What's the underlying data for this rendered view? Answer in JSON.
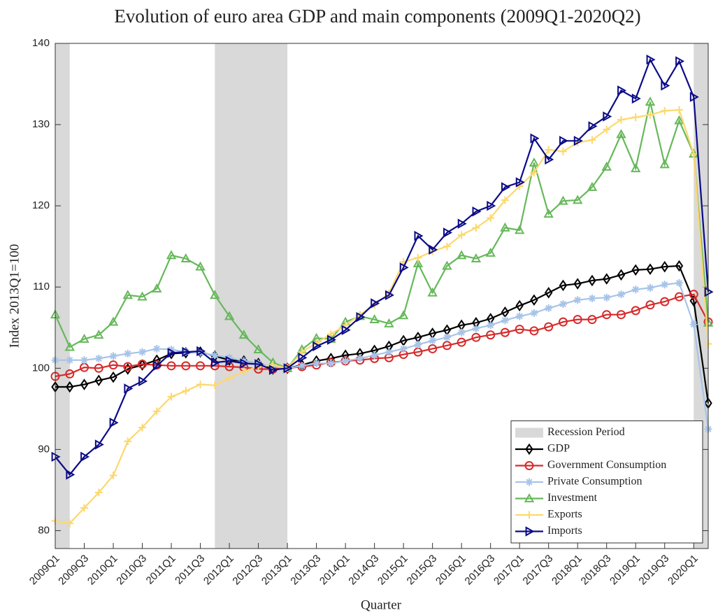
{
  "chart_data": {
    "type": "line",
    "title": "Evolution of euro area GDP and main components (2009Q1-2020Q2)",
    "x_label": "Quarter",
    "y_label": "Index 2013Q1=100",
    "categories": [
      "2009Q1",
      null,
      "2009Q3",
      null,
      "2010Q1",
      null,
      "2010Q3",
      null,
      "2011Q1",
      null,
      "2011Q3",
      null,
      "2012Q1",
      null,
      "2012Q3",
      null,
      "2013Q1",
      null,
      "2013Q3",
      null,
      "2014Q1",
      null,
      "2014Q3",
      null,
      "2015Q1",
      null,
      "2015Q3",
      null,
      "2016Q1",
      null,
      "2016Q3",
      null,
      "2017Q1",
      null,
      "2017Q3",
      null,
      "2018Q1",
      null,
      "2018Q3",
      null,
      "2019Q1",
      null,
      "2019Q3",
      null,
      "2020Q1",
      null
    ],
    "ylim": [
      77.8,
      140
    ],
    "yticks": [
      80,
      90,
      100,
      110,
      120,
      130,
      140
    ],
    "recession_label": "Recession Period",
    "recession_color": "#d9d9d9",
    "recession_spans": [
      [
        0,
        1
      ],
      [
        11,
        16
      ],
      [
        44,
        45
      ]
    ],
    "legend": "lower right",
    "series": [
      {
        "name": "GDP",
        "color": "#000000",
        "marker": "diamond",
        "values": [
          97.7,
          97.7,
          98.0,
          98.5,
          98.9,
          99.9,
          100.4,
          101.0,
          101.8,
          101.9,
          102.0,
          101.5,
          101.0,
          100.9,
          100.6,
          99.9,
          100.0,
          100.4,
          100.9,
          101.2,
          101.6,
          101.8,
          102.2,
          102.7,
          103.4,
          103.8,
          104.3,
          104.7,
          105.3,
          105.6,
          106.1,
          106.9,
          107.7,
          108.4,
          109.3,
          110.2,
          110.4,
          110.8,
          111.0,
          111.5,
          112.1,
          112.2,
          112.5,
          112.6,
          108.3,
          95.7
        ]
      },
      {
        "name": "Government Consumption",
        "color": "#d62a2a",
        "marker": "circle",
        "values": [
          99.0,
          99.3,
          100.1,
          100.0,
          100.4,
          100.2,
          100.5,
          100.4,
          100.3,
          100.3,
          100.3,
          100.3,
          100.2,
          100.1,
          99.9,
          99.9,
          100.0,
          100.2,
          100.4,
          100.7,
          100.9,
          101.0,
          101.2,
          101.3,
          101.7,
          102.0,
          102.4,
          102.8,
          103.2,
          103.8,
          104.1,
          104.4,
          104.8,
          104.6,
          105.1,
          105.7,
          106.0,
          106.0,
          106.6,
          106.6,
          107.1,
          107.8,
          108.2,
          108.8,
          109.1,
          105.7
        ]
      },
      {
        "name": "Private Consumption",
        "color": "#a7c4e8",
        "marker": "asterisk",
        "values": [
          101.0,
          101.0,
          101.0,
          101.2,
          101.5,
          101.8,
          102.0,
          102.4,
          102.3,
          102.0,
          101.9,
          101.6,
          101.3,
          100.9,
          100.6,
          100.2,
          100.0,
          100.3,
          100.6,
          100.6,
          100.9,
          101.2,
          101.6,
          102.0,
          102.4,
          102.9,
          103.4,
          103.8,
          104.4,
          104.9,
          105.3,
          105.9,
          106.4,
          106.8,
          107.4,
          107.9,
          108.4,
          108.6,
          108.7,
          109.1,
          109.7,
          109.9,
          110.3,
          110.5,
          105.4,
          92.5
        ]
      },
      {
        "name": "Investment",
        "color": "#66b85a",
        "marker": "triangle",
        "values": [
          106.6,
          102.6,
          103.6,
          104.1,
          105.7,
          109.0,
          108.8,
          109.8,
          113.9,
          113.5,
          112.5,
          109.0,
          106.4,
          104.1,
          102.3,
          100.7,
          100.0,
          102.3,
          103.7,
          103.6,
          105.7,
          106.4,
          106.0,
          105.5,
          106.5,
          112.9,
          109.3,
          112.6,
          113.9,
          113.5,
          114.2,
          117.3,
          117.0,
          125.3,
          119.0,
          120.6,
          120.7,
          122.3,
          124.8,
          128.8,
          124.6,
          132.8,
          125.1,
          130.5,
          126.4,
          105.6
        ]
      },
      {
        "name": "Exports",
        "color": "#fcd86e",
        "marker": "plus",
        "values": [
          81.2,
          80.9,
          82.8,
          84.7,
          86.8,
          91.0,
          92.7,
          94.7,
          96.5,
          97.2,
          98.0,
          97.9,
          98.8,
          99.6,
          100.2,
          100.4,
          100.0,
          102.0,
          103.1,
          104.2,
          105.3,
          106.6,
          107.8,
          109.2,
          113.1,
          113.6,
          114.4,
          115.0,
          116.4,
          117.3,
          118.5,
          120.7,
          122.4,
          124.1,
          126.9,
          126.7,
          127.8,
          128.1,
          129.4,
          130.6,
          130.9,
          131.2,
          131.7,
          131.8,
          126.4,
          103.0
        ]
      },
      {
        "name": "Imports",
        "color": "#0b0b87",
        "marker": "rtriangle",
        "values": [
          89.1,
          86.9,
          89.1,
          90.6,
          93.3,
          97.5,
          98.4,
          100.3,
          101.9,
          102.0,
          102.1,
          100.7,
          100.9,
          100.6,
          100.5,
          99.8,
          100.0,
          101.3,
          102.7,
          103.5,
          104.7,
          106.3,
          108.0,
          109.0,
          112.4,
          116.3,
          114.6,
          116.7,
          117.8,
          119.3,
          120.0,
          122.3,
          122.9,
          128.3,
          125.7,
          128.0,
          128.0,
          129.8,
          131.0,
          134.2,
          133.2,
          138.0,
          134.8,
          137.8,
          133.4,
          109.4
        ]
      }
    ]
  }
}
